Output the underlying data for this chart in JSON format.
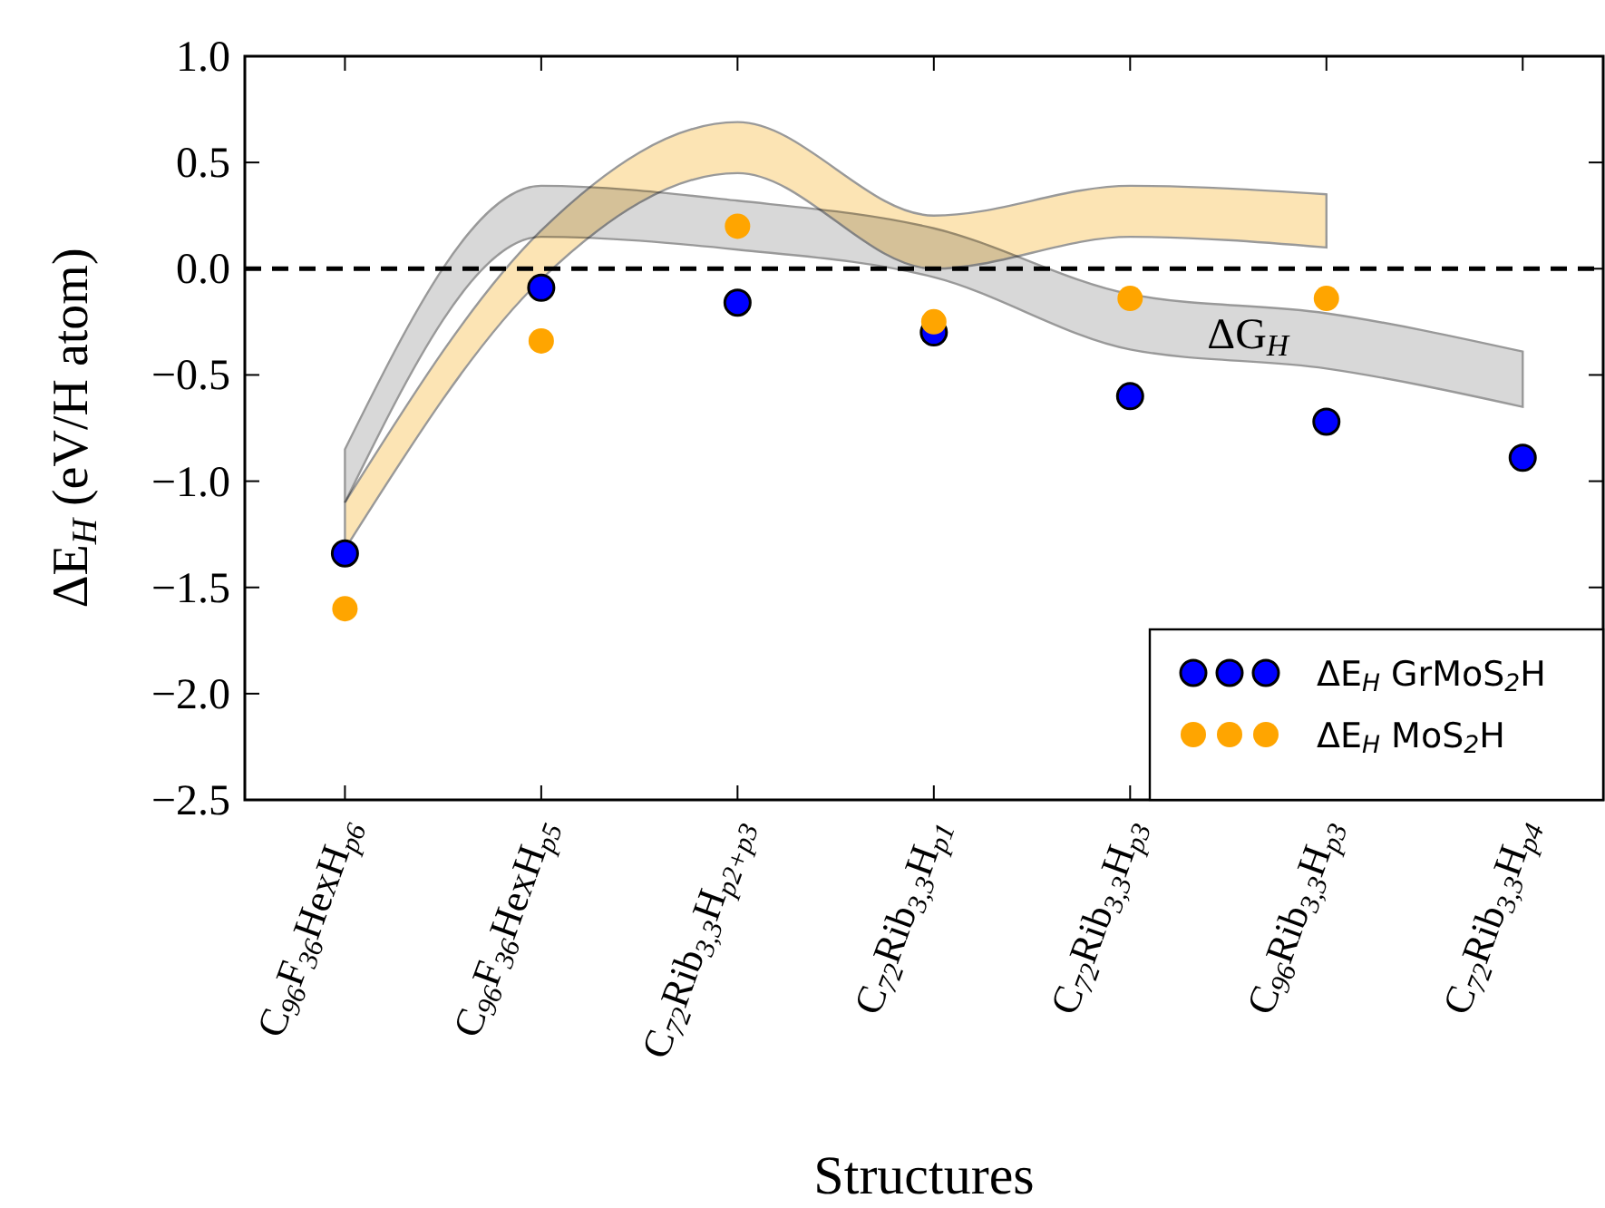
{
  "chart_data": {
    "type": "scatter",
    "xlabel": "Structures",
    "ylabel": "ΔE$_{H}$ (eV/H atom)",
    "categories": [
      "C$_{96}$F$_{36}$HexH$_{p6}$",
      "C$_{96}$F$_{36}$HexH$_{p5}$",
      "C$_{72}$Rib$_{3,3}$H$_{p2+p3}$",
      "C$_{72}$Rib$_{3,3}$H$_{p1}$",
      "C$_{72}$Rib$_{3,3}$H$_{p3}$",
      "C$_{96}$Rib$_{3,3}$H$_{p3}$",
      "C$_{72}$Rib$_{3,3}$H$_{p4}$"
    ],
    "series": [
      {
        "type": "line",
        "color": "#d8d8d8",
        "values": [
          null,
          null,
          null,
          null,
          null,
          null,
          null
        ],
        "upper": [
          -0.85,
          0.39,
          0.32,
          0.19,
          -0.12,
          -0.21,
          -0.39
        ],
        "lower": [
          -1.1,
          0.15,
          0.09,
          -0.04,
          -0.38,
          -0.47,
          -0.65
        ]
      },
      {
        "type": "line",
        "color": "#fce4b4",
        "values": [
          null,
          null,
          null,
          null,
          null,
          null,
          null
        ],
        "upper": [
          -1.1,
          0.18,
          0.69,
          0.25,
          0.39,
          0.35,
          null
        ],
        "lower": [
          -1.32,
          -0.05,
          0.45,
          0.0,
          0.15,
          0.1,
          null
        ]
      },
      {
        "name": "ΔE$_{H}$ GrMoS$_{2}$H",
        "color": "#0000ff",
        "marker": "circle",
        "values": [
          -1.34,
          -0.09,
          -0.16,
          -0.3,
          -0.6,
          -0.72,
          -0.89
        ]
      },
      {
        "name": "ΔE$_{H}$ MoS$_{2}$H",
        "color": "#ffa500",
        "marker": "circle",
        "values": [
          -1.6,
          -0.34,
          0.2,
          -0.25,
          -0.14,
          -0.14,
          null
        ]
      }
    ],
    "ylim": [
      -2.5,
      1.0
    ],
    "yticks": [
      {
        "value": -2.5,
        "label": "−2.5"
      },
      {
        "value": -2.0,
        "label": "−2.0"
      },
      {
        "value": -1.5,
        "label": "−1.5"
      },
      {
        "value": -1.0,
        "label": "−1.0"
      },
      {
        "value": -0.5,
        "label": "−0.5"
      },
      {
        "value": 0.0,
        "label": "0.0"
      },
      {
        "value": 0.5,
        "label": "0.5"
      },
      {
        "value": 1.0,
        "label": "1.0"
      }
    ],
    "ref_lines": [
      {
        "axis": "y",
        "value": 0,
        "color": "#000000",
        "line_style": "dashed"
      }
    ],
    "annotations": [
      "ΔG$_{H}$"
    ],
    "legend": "bottom right",
    "grid": false
  }
}
